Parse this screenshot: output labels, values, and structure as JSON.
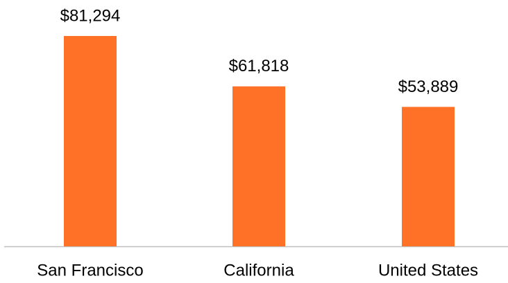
{
  "chart_data": {
    "type": "bar",
    "categories": [
      "San Francisco",
      "California",
      "United States"
    ],
    "values": [
      81294,
      61818,
      53889
    ],
    "value_labels": [
      "$81,294",
      "$61,818",
      "$53,889"
    ],
    "color": "#ff7127"
  }
}
